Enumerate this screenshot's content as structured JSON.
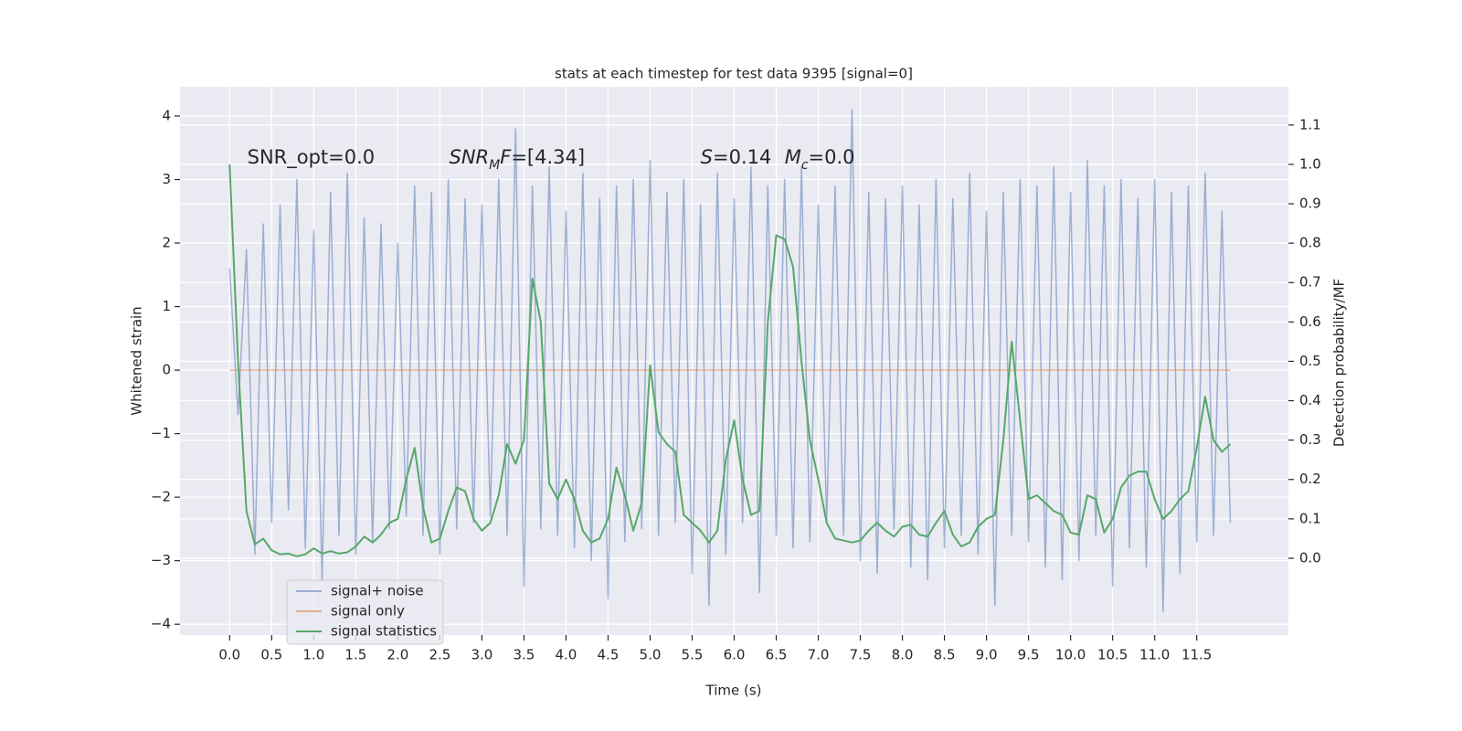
{
  "chart_data": {
    "type": "line",
    "title": "stats at each timestep for test data 9395 [signal=0]",
    "xlabel": "Time (s)",
    "ylabel": "Whitened strain",
    "y2label": "Detection probability/MF",
    "x": [
      0.0,
      0.1,
      0.2,
      0.3,
      0.4,
      0.5,
      0.6,
      0.7,
      0.8,
      0.9,
      1.0,
      1.1,
      1.2,
      1.3,
      1.4,
      1.5,
      1.6,
      1.7,
      1.8,
      1.9,
      2.0,
      2.1,
      2.2,
      2.3,
      2.4,
      2.5,
      2.6,
      2.7,
      2.8,
      2.9,
      3.0,
      3.1,
      3.2,
      3.3,
      3.4,
      3.5,
      3.6,
      3.7,
      3.8,
      3.9,
      4.0,
      4.1,
      4.2,
      4.3,
      4.4,
      4.5,
      4.6,
      4.7,
      4.8,
      4.9,
      5.0,
      5.1,
      5.2,
      5.3,
      5.4,
      5.5,
      5.6,
      5.7,
      5.8,
      5.9,
      6.0,
      6.1,
      6.2,
      6.3,
      6.4,
      6.5,
      6.6,
      6.7,
      6.8,
      6.9,
      7.0,
      7.1,
      7.2,
      7.3,
      7.4,
      7.5,
      7.6,
      7.7,
      7.8,
      7.9,
      8.0,
      8.1,
      8.2,
      8.3,
      8.4,
      8.5,
      8.6,
      8.7,
      8.8,
      8.9,
      9.0,
      9.1,
      9.2,
      9.3,
      9.4,
      9.5,
      9.6,
      9.7,
      9.8,
      9.9,
      10.0,
      10.1,
      10.2,
      10.3,
      10.4,
      10.5,
      10.6,
      10.7,
      10.8,
      10.9,
      11.0,
      11.1,
      11.2,
      11.3,
      11.4,
      11.5,
      11.6,
      11.7,
      11.8,
      11.9
    ],
    "series": [
      {
        "name": "signal+ noise",
        "color": "#4c72b0",
        "alpha": 0.5,
        "axis": "y",
        "values": [
          1.6,
          -0.7,
          1.9,
          -2.9,
          2.3,
          -2.4,
          2.6,
          -2.2,
          3.0,
          -2.8,
          2.2,
          -3.3,
          2.8,
          -2.6,
          3.1,
          -2.9,
          2.4,
          -2.7,
          2.3,
          -2.5,
          2.0,
          -2.3,
          2.9,
          -2.6,
          2.8,
          -2.9,
          3.0,
          -2.5,
          2.7,
          -2.4,
          2.6,
          -2.3,
          3.0,
          -2.6,
          3.8,
          -3.4,
          2.9,
          -2.5,
          3.2,
          -2.6,
          2.5,
          -2.8,
          3.1,
          -3.0,
          2.7,
          -3.6,
          2.9,
          -2.7,
          3.0,
          -2.5,
          3.3,
          -2.6,
          2.8,
          -2.4,
          3.0,
          -3.2,
          2.6,
          -3.7,
          3.1,
          -2.9,
          2.7,
          -2.4,
          3.2,
          -3.5,
          2.9,
          -2.6,
          3.0,
          -2.8,
          3.2,
          -2.7,
          2.6,
          -2.4,
          2.9,
          -2.6,
          4.1,
          -3.0,
          2.8,
          -3.2,
          2.7,
          -2.5,
          2.9,
          -3.1,
          2.6,
          -3.3,
          3.0,
          -2.8,
          2.7,
          -2.6,
          3.1,
          -2.9,
          2.5,
          -3.7,
          2.8,
          -2.6,
          3.0,
          -2.7,
          2.9,
          -3.1,
          3.2,
          -3.3,
          2.8,
          -3.0,
          3.3,
          -2.6,
          2.9,
          -3.4,
          3.0,
          -2.8,
          2.7,
          -3.1,
          3.0,
          -3.8,
          2.8,
          -3.2,
          2.9,
          -2.7,
          3.1,
          -2.6,
          2.5,
          -2.4
        ]
      },
      {
        "name": "signal only",
        "color": "#dd8452",
        "alpha": 0.6,
        "axis": "y",
        "values": [
          0,
          0,
          0,
          0,
          0,
          0,
          0,
          0,
          0,
          0,
          0,
          0,
          0,
          0,
          0,
          0,
          0,
          0,
          0,
          0,
          0,
          0,
          0,
          0,
          0,
          0,
          0,
          0,
          0,
          0,
          0,
          0,
          0,
          0,
          0,
          0,
          0,
          0,
          0,
          0,
          0,
          0,
          0,
          0,
          0,
          0,
          0,
          0,
          0,
          0,
          0,
          0,
          0,
          0,
          0,
          0,
          0,
          0,
          0,
          0,
          0,
          0,
          0,
          0,
          0,
          0,
          0,
          0,
          0,
          0,
          0,
          0,
          0,
          0,
          0,
          0,
          0,
          0,
          0,
          0,
          0,
          0,
          0,
          0,
          0,
          0,
          0,
          0,
          0,
          0,
          0,
          0,
          0,
          0,
          0,
          0,
          0,
          0,
          0,
          0,
          0,
          0,
          0,
          0,
          0,
          0,
          0,
          0,
          0,
          0,
          0,
          0,
          0,
          0,
          0,
          0,
          0,
          0,
          0,
          0
        ]
      },
      {
        "name": "signal statistics",
        "color": "#55a868",
        "alpha": 1,
        "axis": "y2",
        "values": [
          1.0,
          0.5,
          0.12,
          0.035,
          0.05,
          0.02,
          0.01,
          0.012,
          0.005,
          0.01,
          0.025,
          0.012,
          0.018,
          0.012,
          0.015,
          0.03,
          0.055,
          0.04,
          0.06,
          0.09,
          0.1,
          0.2,
          0.28,
          0.13,
          0.04,
          0.05,
          0.12,
          0.18,
          0.17,
          0.1,
          0.07,
          0.09,
          0.16,
          0.29,
          0.24,
          0.3,
          0.71,
          0.6,
          0.19,
          0.15,
          0.2,
          0.15,
          0.07,
          0.04,
          0.05,
          0.1,
          0.23,
          0.16,
          0.07,
          0.14,
          0.49,
          0.32,
          0.29,
          0.27,
          0.11,
          0.09,
          0.07,
          0.04,
          0.07,
          0.25,
          0.35,
          0.2,
          0.11,
          0.12,
          0.6,
          0.82,
          0.81,
          0.74,
          0.5,
          0.3,
          0.2,
          0.09,
          0.05,
          0.045,
          0.04,
          0.045,
          0.07,
          0.09,
          0.07,
          0.055,
          0.08,
          0.085,
          0.06,
          0.055,
          0.09,
          0.12,
          0.06,
          0.03,
          0.04,
          0.08,
          0.1,
          0.11,
          0.3,
          0.55,
          0.35,
          0.15,
          0.16,
          0.14,
          0.12,
          0.11,
          0.065,
          0.06,
          0.16,
          0.15,
          0.065,
          0.1,
          0.18,
          0.21,
          0.22,
          0.22,
          0.15,
          0.1,
          0.12,
          0.15,
          0.17,
          0.28,
          0.41,
          0.3,
          0.27,
          0.29
        ]
      }
    ],
    "annotations": [
      {
        "x": 0.21,
        "y": 3.34,
        "parts": [
          {
            "text": "SNR_opt=0.0",
            "style": "normal"
          }
        ]
      },
      {
        "x": 2.61,
        "y": 3.34,
        "parts": [
          {
            "text": "SNR",
            "style": "italic"
          },
          {
            "text": "M",
            "style": "italic-sub"
          },
          {
            "text": "F",
            "style": "italic"
          },
          {
            "text": "=[4.34]",
            "style": "normal"
          }
        ]
      },
      {
        "x": 5.6,
        "y": 3.34,
        "parts": [
          {
            "text": "S",
            "style": "italic"
          },
          {
            "text": "=0.14",
            "style": "normal"
          }
        ]
      },
      {
        "x": 6.6,
        "y": 3.34,
        "parts": [
          {
            "text": "M",
            "style": "italic"
          },
          {
            "text": "c",
            "style": "italic-sub"
          },
          {
            "text": "=0.0",
            "style": "normal"
          }
        ]
      }
    ],
    "xlim": [
      -0.59,
      12.59
    ],
    "ylim": [
      -4.17,
      4.46
    ],
    "y2lim": [
      -0.195,
      1.197
    ],
    "xticks": [
      {
        "value": 0,
        "label": "0.0"
      },
      0.5,
      {
        "value": 1,
        "label": "1.0"
      },
      1.5,
      {
        "value": 2,
        "label": "2.0"
      },
      2.5,
      {
        "value": 3,
        "label": "3.0"
      },
      3.5,
      {
        "value": 4,
        "label": "4.0"
      },
      4.5,
      {
        "value": 5,
        "label": "5.0"
      },
      5.5,
      {
        "value": 6,
        "label": "6.0"
      },
      6.5,
      {
        "value": 7,
        "label": "7.0"
      },
      7.5,
      {
        "value": 8,
        "label": "8.0"
      },
      8.5,
      {
        "value": 9,
        "label": "9.0"
      },
      9.5,
      {
        "value": 10,
        "label": "10.0"
      },
      10.5,
      {
        "value": 11,
        "label": "11.0"
      },
      11.5
    ],
    "yticks": [
      {
        "value": -4,
        "label": "−4"
      },
      {
        "value": -3,
        "label": "−3"
      },
      {
        "value": -2,
        "label": "−2"
      },
      {
        "value": -1,
        "label": "−1"
      },
      0,
      1,
      2,
      3,
      4
    ],
    "y2ticks": [
      {
        "value": 0,
        "label": "0.0"
      },
      0.1,
      0.2,
      0.3,
      0.4,
      0.5,
      0.6,
      0.7,
      0.8,
      0.9,
      {
        "value": 1,
        "label": "1.0"
      },
      1.1
    ],
    "grid": true,
    "legend_loc": "lower left"
  }
}
